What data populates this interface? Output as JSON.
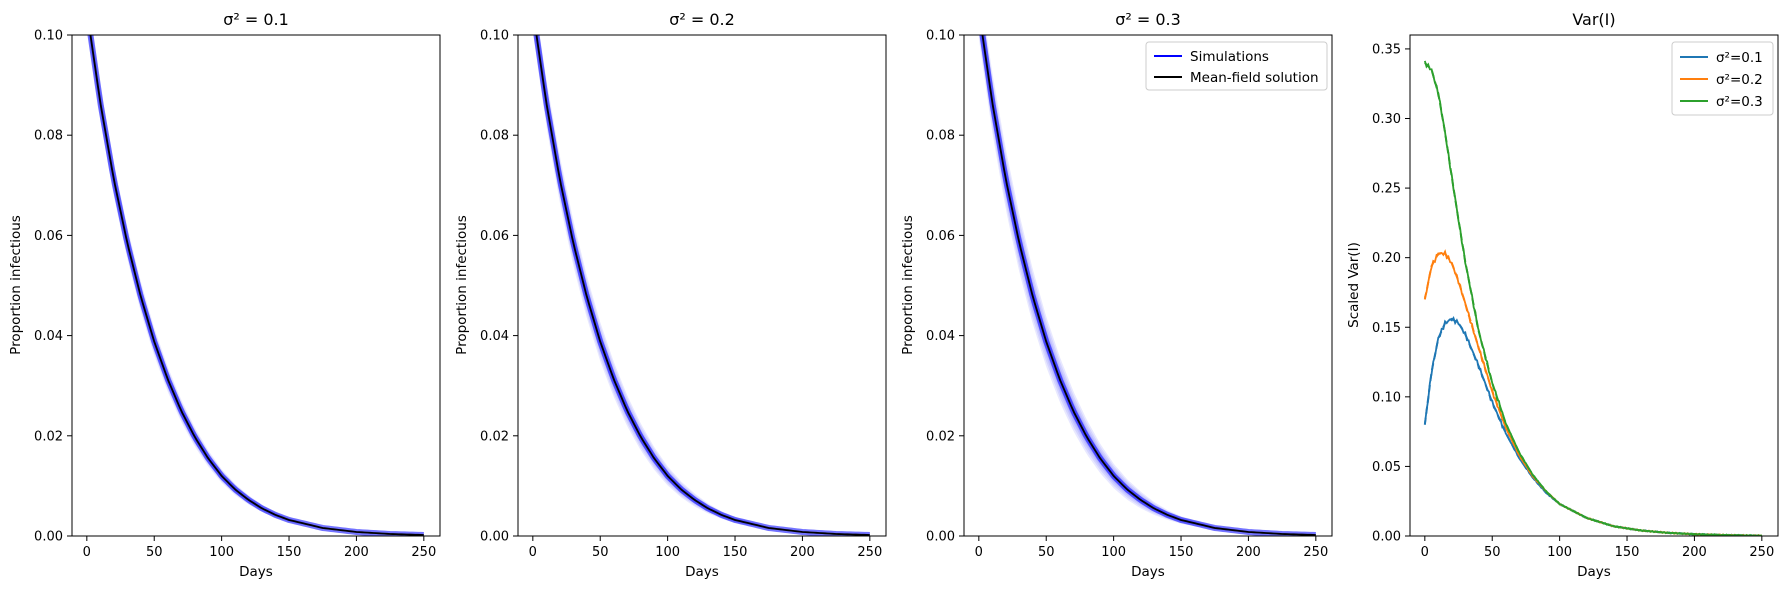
{
  "figure": {
    "colors": {
      "simulations": "#0000ff",
      "mean_field": "#000000",
      "s01": "#1f77b4",
      "s02": "#ff7f0e",
      "s03": "#2ca02c"
    }
  },
  "chart_data": [
    {
      "type": "line",
      "title": "σ² = 0.1",
      "xlabel": "Days",
      "ylabel": "Proportion infectious",
      "xlim": [
        -11,
        262
      ],
      "ylim": [
        0,
        0.1
      ],
      "xticks": [
        0,
        50,
        100,
        150,
        200,
        250
      ],
      "yticks": [
        0.0,
        0.02,
        0.04,
        0.06,
        0.08,
        0.1
      ],
      "xtick_labels": [
        "0",
        "50",
        "100",
        "150",
        "200",
        "250"
      ],
      "ytick_labels": [
        "0.00",
        "0.02",
        "0.04",
        "0.06",
        "0.08",
        "0.10"
      ],
      "series": [
        {
          "x": [
            0,
            10,
            20,
            30,
            40,
            50,
            60,
            70,
            80,
            90,
            100,
            110,
            120,
            130,
            140,
            150,
            175,
            200,
            225,
            250
          ],
          "y": [
            0.105,
            0.0865,
            0.0712,
            0.0585,
            0.0478,
            0.0388,
            0.0313,
            0.025,
            0.0198,
            0.0155,
            0.012,
            0.0093,
            0.0072,
            0.0055,
            0.0042,
            0.0032,
            0.0016,
            0.0008,
            0.0004,
            0.0002
          ],
          "style": "simulation-band"
        },
        {
          "x": [
            0,
            10,
            20,
            30,
            40,
            50,
            60,
            70,
            80,
            90,
            100,
            110,
            120,
            130,
            140,
            150,
            175,
            200,
            225,
            250
          ],
          "y": [
            0.105,
            0.0865,
            0.0712,
            0.0585,
            0.0478,
            0.0388,
            0.0313,
            0.025,
            0.0198,
            0.0155,
            0.012,
            0.0093,
            0.0072,
            0.0055,
            0.0042,
            0.0032,
            0.0016,
            0.0008,
            0.0004,
            0.0002
          ],
          "style": "mean-field"
        }
      ],
      "band_spread": 0.1
    },
    {
      "type": "line",
      "title": "σ² = 0.2",
      "xlabel": "Days",
      "ylabel": "Proportion infectious",
      "xlim": [
        -11,
        262
      ],
      "ylim": [
        0,
        0.1
      ],
      "xticks": [
        0,
        50,
        100,
        150,
        200,
        250
      ],
      "yticks": [
        0.0,
        0.02,
        0.04,
        0.06,
        0.08,
        0.1
      ],
      "xtick_labels": [
        "0",
        "50",
        "100",
        "150",
        "200",
        "250"
      ],
      "ytick_labels": [
        "0.00",
        "0.02",
        "0.04",
        "0.06",
        "0.08",
        "0.10"
      ],
      "series": [
        {
          "x": [
            0,
            10,
            20,
            30,
            40,
            50,
            60,
            70,
            80,
            90,
            100,
            110,
            120,
            130,
            140,
            150,
            175,
            200,
            225,
            250
          ],
          "y": [
            0.105,
            0.0865,
            0.0712,
            0.0585,
            0.0478,
            0.0388,
            0.0313,
            0.025,
            0.0198,
            0.0155,
            0.012,
            0.0093,
            0.0072,
            0.0055,
            0.0042,
            0.0032,
            0.0016,
            0.0008,
            0.0004,
            0.0002
          ],
          "style": "simulation-band"
        },
        {
          "x": [
            0,
            10,
            20,
            30,
            40,
            50,
            60,
            70,
            80,
            90,
            100,
            110,
            120,
            130,
            140,
            150,
            175,
            200,
            225,
            250
          ],
          "y": [
            0.105,
            0.0865,
            0.0712,
            0.0585,
            0.0478,
            0.0388,
            0.0313,
            0.025,
            0.0198,
            0.0155,
            0.012,
            0.0093,
            0.0072,
            0.0055,
            0.0042,
            0.0032,
            0.0016,
            0.0008,
            0.0004,
            0.0002
          ],
          "style": "mean-field"
        }
      ],
      "band_spread": 0.14
    },
    {
      "type": "line",
      "title": "σ² = 0.3",
      "xlabel": "Days",
      "ylabel": "Proportion infectious",
      "xlim": [
        -11,
        262
      ],
      "ylim": [
        0,
        0.1
      ],
      "xticks": [
        0,
        50,
        100,
        150,
        200,
        250
      ],
      "yticks": [
        0.0,
        0.02,
        0.04,
        0.06,
        0.08,
        0.1
      ],
      "xtick_labels": [
        "0",
        "50",
        "100",
        "150",
        "200",
        "250"
      ],
      "ytick_labels": [
        "0.00",
        "0.02",
        "0.04",
        "0.06",
        "0.08",
        "0.10"
      ],
      "legend": {
        "position": "top-right",
        "entries": [
          "Simulations",
          "Mean-field solution"
        ]
      },
      "series": [
        {
          "name": "Simulations",
          "x": [
            0,
            10,
            20,
            30,
            40,
            50,
            60,
            70,
            80,
            90,
            100,
            110,
            120,
            130,
            140,
            150,
            175,
            200,
            225,
            250
          ],
          "y": [
            0.105,
            0.0865,
            0.0712,
            0.0585,
            0.0478,
            0.0388,
            0.0313,
            0.025,
            0.0198,
            0.0155,
            0.012,
            0.0093,
            0.0072,
            0.0055,
            0.0042,
            0.0032,
            0.0016,
            0.0008,
            0.0004,
            0.0002
          ],
          "style": "simulation-band"
        },
        {
          "name": "Mean-field solution",
          "x": [
            0,
            10,
            20,
            30,
            40,
            50,
            60,
            70,
            80,
            90,
            100,
            110,
            120,
            130,
            140,
            150,
            175,
            200,
            225,
            250
          ],
          "y": [
            0.105,
            0.0865,
            0.0712,
            0.0585,
            0.0478,
            0.0388,
            0.0313,
            0.025,
            0.0198,
            0.0155,
            0.012,
            0.0093,
            0.0072,
            0.0055,
            0.0042,
            0.0032,
            0.0016,
            0.0008,
            0.0004,
            0.0002
          ],
          "style": "mean-field"
        }
      ],
      "band_spread": 0.18
    },
    {
      "type": "line",
      "title": "Var(I)",
      "xlabel": "Days",
      "ylabel": "Scaled Var(I)",
      "xlim": [
        -11,
        262
      ],
      "ylim": [
        0,
        0.36
      ],
      "xticks": [
        0,
        50,
        100,
        150,
        200,
        250
      ],
      "yticks": [
        0.0,
        0.05,
        0.1,
        0.15,
        0.2,
        0.25,
        0.3,
        0.35
      ],
      "xtick_labels": [
        "0",
        "50",
        "100",
        "150",
        "200",
        "250"
      ],
      "ytick_labels": [
        "0.00",
        "0.05",
        "0.10",
        "0.15",
        "0.20",
        "0.25",
        "0.30",
        "0.35"
      ],
      "legend": {
        "position": "top-right",
        "entries": [
          "σ²=0.1",
          "σ²=0.2",
          "σ²=0.3"
        ]
      },
      "series": [
        {
          "name": "σ²=0.1",
          "x": [
            0,
            5,
            10,
            15,
            20,
            25,
            30,
            40,
            50,
            60,
            70,
            80,
            90,
            100,
            120,
            140,
            160,
            180,
            200,
            225,
            250
          ],
          "y": [
            0.08,
            0.118,
            0.142,
            0.153,
            0.156,
            0.153,
            0.145,
            0.122,
            0.096,
            0.074,
            0.056,
            0.042,
            0.031,
            0.023,
            0.013,
            0.007,
            0.004,
            0.0023,
            0.0013,
            0.0006,
            0.0002
          ]
        },
        {
          "name": "σ²=0.2",
          "x": [
            0,
            5,
            10,
            15,
            20,
            25,
            30,
            40,
            50,
            60,
            70,
            80,
            90,
            100,
            120,
            140,
            160,
            180,
            200,
            225,
            250
          ],
          "y": [
            0.17,
            0.194,
            0.203,
            0.203,
            0.196,
            0.183,
            0.167,
            0.135,
            0.104,
            0.078,
            0.058,
            0.043,
            0.032,
            0.023,
            0.013,
            0.007,
            0.004,
            0.0023,
            0.0013,
            0.0006,
            0.0002
          ]
        },
        {
          "name": "σ²=0.3",
          "x": [
            0,
            5,
            10,
            15,
            20,
            25,
            30,
            40,
            50,
            60,
            70,
            80,
            90,
            100,
            120,
            140,
            160,
            180,
            200,
            225,
            250
          ],
          "y": [
            0.34,
            0.335,
            0.318,
            0.29,
            0.258,
            0.227,
            0.197,
            0.147,
            0.11,
            0.081,
            0.06,
            0.044,
            0.032,
            0.023,
            0.013,
            0.007,
            0.004,
            0.0023,
            0.0013,
            0.0006,
            0.0002
          ]
        }
      ]
    }
  ]
}
